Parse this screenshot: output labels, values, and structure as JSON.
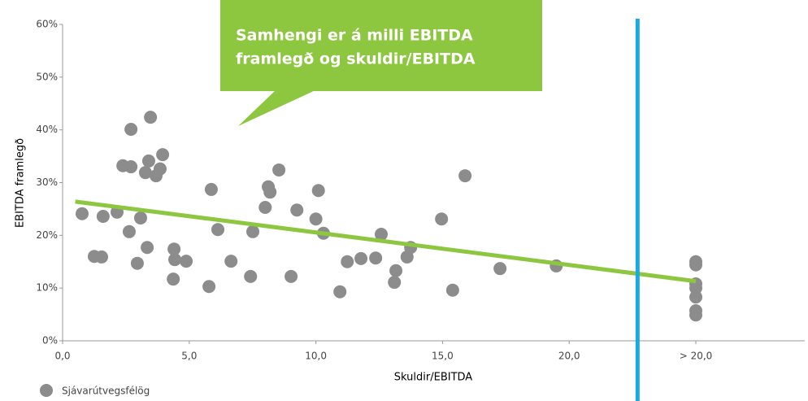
{
  "chart_data": {
    "type": "scatter",
    "annotation": [
      "Samhengi er á milli EBITDA",
      "framlegð og skuldir/EBITDA"
    ],
    "xlabel": "Skuldir/EBITDA",
    "ylabel": "EBITDA framlegð",
    "xlim": [
      0,
      29.3
    ],
    "ylim": [
      0,
      60
    ],
    "xticks": [
      {
        "value": 0,
        "label": "0,0"
      },
      {
        "value": 5,
        "label": "5,0"
      },
      {
        "value": 10,
        "label": "10,0"
      },
      {
        "value": 15,
        "label": "15,0"
      },
      {
        "value": 20,
        "label": "20,0"
      },
      {
        "value": 25,
        "label": "> 20,0"
      }
    ],
    "yticks": [
      {
        "value": 0,
        "label": "0%"
      },
      {
        "value": 10,
        "label": "10%"
      },
      {
        "value": 20,
        "label": "20%"
      },
      {
        "value": 30,
        "label": "30%"
      },
      {
        "value": 40,
        "label": "40%"
      },
      {
        "value": 50,
        "label": "50%"
      },
      {
        "value": 60,
        "label": "60%"
      }
    ],
    "series": [
      {
        "name": "Sjávarútvegsfélög",
        "color": "#8c8c8c",
        "x": [
          0.77,
          1.25,
          1.54,
          1.6,
          2.15,
          2.38,
          2.63,
          2.7,
          2.7,
          2.95,
          3.08,
          3.27,
          3.34,
          3.4,
          3.47,
          3.69,
          3.85,
          3.95,
          4.37,
          4.4,
          4.43,
          4.88,
          5.78,
          5.87,
          6.13,
          6.65,
          7.42,
          7.51,
          8.0,
          8.12,
          8.19,
          8.54,
          9.02,
          9.25,
          10.0,
          10.1,
          10.3,
          10.95,
          11.24,
          11.78,
          12.36,
          12.58,
          13.1,
          13.16,
          13.6,
          13.74,
          14.96,
          15.4,
          15.89,
          17.27,
          19.49,
          25,
          25,
          25,
          25,
          25,
          25,
          25
        ],
        "y": [
          24.1,
          16.0,
          15.9,
          23.6,
          24.4,
          33.2,
          20.7,
          40.1,
          33.0,
          14.7,
          23.3,
          31.9,
          17.7,
          34.1,
          42.4,
          31.3,
          32.6,
          35.3,
          11.7,
          17.4,
          15.4,
          15.1,
          10.3,
          28.7,
          21.1,
          15.1,
          12.2,
          20.7,
          25.3,
          29.2,
          28.2,
          32.4,
          12.2,
          24.8,
          23.1,
          28.5,
          20.4,
          9.3,
          15.0,
          15.6,
          15.7,
          20.2,
          11.1,
          13.3,
          15.9,
          17.7,
          23.1,
          9.6,
          31.3,
          13.7,
          14.2,
          15.0,
          14.4,
          10.8,
          10.0,
          8.3,
          5.7,
          4.9
        ]
      }
    ],
    "trendline": {
      "color": "#8dc63f",
      "x": [
        0.5,
        25
      ],
      "y": [
        26.4,
        11.3
      ]
    },
    "vline": {
      "color": "#1ba9e1",
      "x": 22.7
    }
  }
}
